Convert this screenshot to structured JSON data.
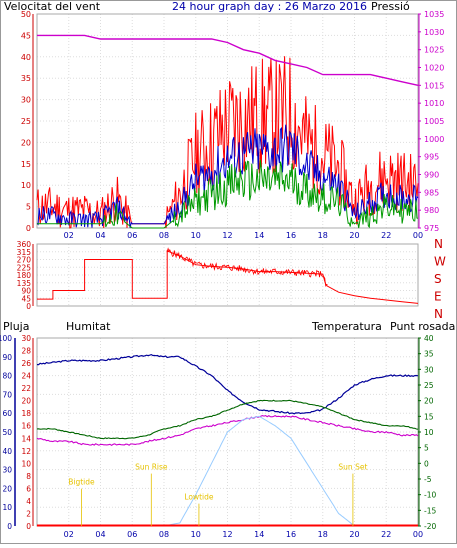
{
  "colors": {
    "wind": "#ff0000",
    "pressure": "#cc00cc",
    "humidity": "#000099",
    "temperature": "#006600",
    "dewpoint": "#cc00cc",
    "rain": "#ff0000",
    "gust": "#ff0000",
    "wind_avg": "#0000cc",
    "wind_min": "#009900",
    "solar": "#99ccff",
    "astro": "#e6c200"
  },
  "chart_data": [
    {
      "type": "line",
      "title": "24 hour graph day : 26 Marzo 2016",
      "left_label": "Velocitat del vent",
      "right_label": "Pressió",
      "x_ticks": [
        "02",
        "04",
        "06",
        "08",
        "10",
        "12",
        "14",
        "16",
        "18",
        "20",
        "22",
        "00"
      ],
      "y_left_ticks": [
        "0",
        "5",
        "10",
        "15",
        "20",
        "25",
        "30",
        "35",
        "40",
        "45",
        "50"
      ],
      "y_right_ticks": [
        "975",
        "980",
        "985",
        "990",
        "995",
        "1000",
        "1005",
        "1010",
        "1015",
        "1020",
        "1025",
        "1030",
        "1035"
      ],
      "ylim_left": [
        0,
        50
      ],
      "ylim_right": [
        975,
        1035
      ],
      "hours": [
        0,
        1,
        2,
        3,
        4,
        5,
        6,
        7,
        8,
        9,
        10,
        11,
        12,
        13,
        14,
        15,
        16,
        17,
        18,
        19,
        20,
        21,
        22,
        23,
        24
      ],
      "series": [
        {
          "name": "gust",
          "values": [
            5,
            5,
            4,
            4,
            3,
            7,
            1,
            1,
            1,
            8,
            17,
            20,
            24,
            25,
            26,
            26,
            27,
            20,
            17,
            14,
            6,
            10,
            12,
            11,
            10
          ]
        },
        {
          "name": "wind_avg",
          "values": [
            3,
            3,
            2,
            2,
            2,
            5,
            1,
            1,
            1,
            5,
            11,
            13,
            16,
            17,
            18,
            18,
            19,
            14,
            12,
            10,
            3,
            6,
            8,
            7,
            7
          ]
        },
        {
          "name": "wind_min",
          "values": [
            1,
            1,
            1,
            1,
            1,
            3,
            0,
            0,
            0,
            3,
            6,
            8,
            10,
            11,
            11,
            11,
            11,
            9,
            7,
            6,
            1,
            3,
            5,
            4,
            4
          ]
        },
        {
          "name": "pressure",
          "values": [
            1029,
            1029,
            1029,
            1029,
            1028,
            1028,
            1028,
            1028,
            1028,
            1028,
            1028,
            1028,
            1027,
            1025,
            1024,
            1022,
            1021,
            1020,
            1018,
            1018,
            1018,
            1018,
            1017,
            1016,
            1015
          ]
        }
      ]
    },
    {
      "type": "line",
      "right_label_letters": [
        "N",
        "W",
        "S",
        "E",
        "N"
      ],
      "y_ticks": [
        "0",
        "45",
        "90",
        "135",
        "180",
        "225",
        "270",
        "315",
        "360"
      ],
      "ylim": [
        0,
        360
      ],
      "x_ticks": [
        "02",
        "04",
        "06",
        "08",
        "10",
        "12",
        "14",
        "16",
        "18",
        "20",
        "22",
        "00"
      ],
      "series": [
        {
          "name": "wind_direction",
          "x": [
            0,
            1,
            1,
            2,
            2,
            3,
            3,
            4,
            4,
            6,
            6,
            7,
            7,
            8,
            8,
            8.2,
            8.2,
            9,
            10,
            11,
            12,
            13,
            14,
            15,
            16,
            17,
            18,
            18.2,
            19,
            20,
            21,
            22,
            23,
            24
          ],
          "values": [
            40,
            40,
            90,
            90,
            90,
            90,
            270,
            270,
            270,
            270,
            45,
            45,
            45,
            45,
            45,
            45,
            320,
            290,
            240,
            230,
            225,
            215,
            200,
            200,
            195,
            190,
            185,
            120,
            80,
            60,
            45,
            35,
            25,
            15
          ]
        }
      ]
    },
    {
      "type": "line",
      "left_label_rain": "Pluja",
      "left_label_hum": "Humitat",
      "right_label_temp": "Temperatura",
      "right_label_dew": "Punt rosada",
      "y_hum_ticks": [
        "0",
        "10",
        "20",
        "30",
        "40",
        "50",
        "60",
        "70",
        "80",
        "90",
        "100"
      ],
      "y_rain_ticks": [
        "0",
        "2",
        "4",
        "6",
        "8",
        "10",
        "12",
        "14",
        "16",
        "18",
        "20",
        "22",
        "24",
        "26",
        "28",
        "30"
      ],
      "y_temp_ticks": [
        "-20",
        "-15",
        "-10",
        "-5",
        "0",
        "5",
        "10",
        "15",
        "20",
        "25",
        "30",
        "35",
        "40"
      ],
      "ylim_hum": [
        0,
        100
      ],
      "ylim_temp": [
        -20,
        40
      ],
      "x_ticks": [
        "02",
        "04",
        "06",
        "08",
        "10",
        "12",
        "14",
        "16",
        "18",
        "20",
        "22",
        "00"
      ],
      "hours": [
        0,
        1,
        2,
        3,
        4,
        5,
        6,
        7,
        8,
        9,
        10,
        11,
        12,
        13,
        14,
        15,
        16,
        17,
        18,
        19,
        20,
        21,
        22,
        23,
        24
      ],
      "series": [
        {
          "name": "humidity",
          "values": [
            86,
            87,
            88,
            88,
            88,
            89,
            90,
            91,
            90,
            90,
            85,
            80,
            72,
            66,
            62,
            61,
            60,
            60,
            62,
            68,
            75,
            78,
            80,
            80,
            80
          ]
        },
        {
          "name": "temperature",
          "values": [
            11,
            11,
            10,
            9,
            8,
            8,
            8,
            9,
            11,
            12,
            14,
            15,
            17,
            19,
            20,
            20,
            20,
            19,
            18,
            16,
            14,
            13,
            12,
            12,
            11
          ]
        },
        {
          "name": "dewpoint",
          "values": [
            8,
            7,
            7,
            6,
            6,
            6,
            6,
            7,
            8,
            9,
            11,
            12,
            13,
            14,
            15,
            15,
            15,
            14,
            13,
            12,
            11,
            10,
            10,
            9,
            9
          ]
        },
        {
          "name": "solar",
          "values": [
            -20,
            -20,
            -20,
            -20,
            -20,
            -20,
            -20,
            -20,
            -20,
            -19,
            -10,
            0,
            10,
            14,
            15,
            12,
            8,
            0,
            -8,
            -16,
            -20,
            -20,
            -20,
            -20,
            -20
          ]
        }
      ],
      "annotations": [
        {
          "label": "Sun Rise",
          "hour": 7.2,
          "level": 15
        },
        {
          "label": "Sun Set",
          "hour": 19.9,
          "level": 15
        },
        {
          "label": "Lowtide",
          "hour": 10.2,
          "level": 7
        },
        {
          "label": "Bigtide",
          "hour": 2.8,
          "level": 11
        }
      ]
    }
  ]
}
